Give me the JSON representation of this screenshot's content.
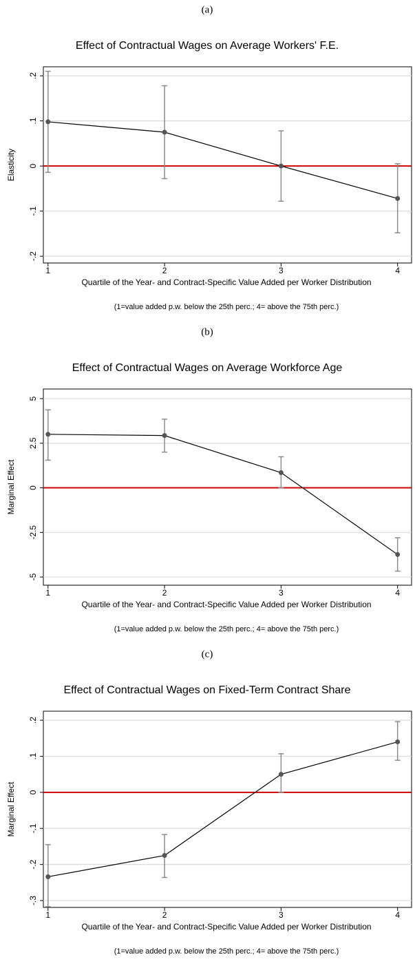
{
  "chart_data": [
    {
      "type": "line",
      "panel": "(a)",
      "title": "Effect of Contractual Wages on Average Workers' F.E.",
      "xlabel": "Quartile of the Year- and Contract-Specific Value Added per Worker Distribution",
      "note": "(1=value added p.w. below the 25th perc.;  4= above the 75th perc.)",
      "ylabel": "Elasticity",
      "x": [
        1,
        2,
        3,
        4
      ],
      "xlim": [
        0.96,
        4.12
      ],
      "xticks": [
        1,
        2,
        3,
        4
      ],
      "ylim": [
        -0.215,
        0.22
      ],
      "yticks": [
        {
          "value": -0.2,
          "label": "-.2"
        },
        {
          "value": -0.1,
          "label": "-.1"
        },
        0,
        {
          "value": 0.1,
          "label": ".1"
        },
        {
          "value": 0.2,
          "label": ".2"
        }
      ],
      "grid": true,
      "refline": {
        "value": 0,
        "color": "#cc0000"
      },
      "series": [
        {
          "color": "#000000",
          "marker_color": "#555555",
          "ci_color": "#8c8c8c",
          "values": [
            0.098,
            0.075,
            0.0,
            -0.072
          ],
          "ci_low": [
            -0.014,
            -0.028,
            -0.078,
            -0.148
          ],
          "ci_high": [
            0.21,
            0.178,
            0.078,
            0.005
          ]
        }
      ]
    },
    {
      "type": "line",
      "panel": "(b)",
      "title": "Effect of Contractual Wages on Average Workforce Age",
      "xlabel": "Quartile of the Year- and Contract-Specific Value Added per Worker Distribution",
      "note": "(1=value added p.w. below the 25th perc.;  4= above the 75th perc.)",
      "ylabel": "Marginal Effect",
      "x": [
        1,
        2,
        3,
        4
      ],
      "xlim": [
        0.96,
        4.12
      ],
      "xticks": [
        1,
        2,
        3,
        4
      ],
      "ylim": [
        -5.46,
        5.54
      ],
      "yticks": [
        -5,
        -2.5,
        0,
        2.5,
        5
      ],
      "grid": true,
      "refline": {
        "value": 0,
        "color": "#cc0000"
      },
      "series": [
        {
          "color": "#000000",
          "marker_color": "#555555",
          "ci_color": "#8c8c8c",
          "values": [
            3.0,
            2.93,
            0.85,
            -3.74
          ],
          "ci_low": [
            1.55,
            2.0,
            0,
            -4.67
          ],
          "ci_high": [
            4.37,
            3.85,
            1.74,
            -2.8
          ]
        }
      ]
    },
    {
      "type": "line",
      "panel": "(c)",
      "title": "Effect of Contractual Wages on Fixed-Term Contract Share",
      "xlabel": "Quartile of the Year- and Contract-Specific Value Added per Worker Distribution",
      "note": "(1=value added p.w. below the 25th perc.;  4= above the 75th perc.)",
      "ylabel": "Marginal Effect",
      "x": [
        1,
        2,
        3,
        4
      ],
      "xlim": [
        0.96,
        4.12
      ],
      "xticks": [
        1,
        2,
        3,
        4
      ],
      "ylim": [
        -0.319,
        0.225
      ],
      "yticks": [
        {
          "value": -0.3,
          "label": "-.3"
        },
        {
          "value": -0.2,
          "label": "-.2"
        },
        {
          "value": -0.1,
          "label": "-.1"
        },
        0,
        {
          "value": 0.1,
          "label": ".1"
        },
        {
          "value": 0.2,
          "label": ".2"
        }
      ],
      "grid": true,
      "refline": {
        "value": 0,
        "color": "#cc0000"
      },
      "series": [
        {
          "color": "#000000",
          "marker_color": "#555555",
          "ci_color": "#8c8c8c",
          "values": [
            -0.234,
            -0.175,
            0.05,
            0.14
          ],
          "ci_low": [
            -0.317,
            -0.236,
            0,
            0.089
          ],
          "ci_high": [
            -0.145,
            -0.117,
            0.107,
            0.196
          ]
        }
      ]
    }
  ]
}
